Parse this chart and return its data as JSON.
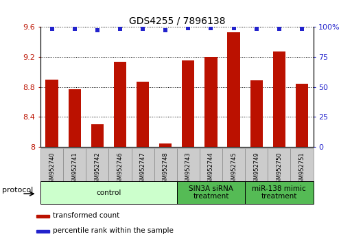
{
  "title": "GDS4255 / 7896138",
  "samples": [
    "GSM952740",
    "GSM952741",
    "GSM952742",
    "GSM952746",
    "GSM952747",
    "GSM952748",
    "GSM952743",
    "GSM952744",
    "GSM952745",
    "GSM952749",
    "GSM952750",
    "GSM952751"
  ],
  "bar_values": [
    8.9,
    8.77,
    8.3,
    9.13,
    8.87,
    8.05,
    9.15,
    9.2,
    9.53,
    8.89,
    9.27,
    8.84
  ],
  "dot_values": [
    98,
    98,
    97,
    98,
    98,
    97,
    99,
    99,
    99,
    98,
    98,
    98
  ],
  "bar_color": "#bb1100",
  "dot_color": "#2222cc",
  "ylim_left": [
    8.0,
    9.6
  ],
  "ylim_right": [
    0,
    100
  ],
  "yticks_left": [
    8.0,
    8.4,
    8.8,
    9.2,
    9.6
  ],
  "yticks_right": [
    0,
    25,
    50,
    75,
    100
  ],
  "groups": [
    {
      "label": "control",
      "start": 0,
      "end": 6,
      "color": "#ccffcc",
      "text_color": "black"
    },
    {
      "label": "SIN3A siRNA\ntreatment",
      "start": 6,
      "end": 9,
      "color": "#55bb55",
      "text_color": "black"
    },
    {
      "label": "miR-138 mimic\ntreatment",
      "start": 9,
      "end": 12,
      "color": "#55bb55",
      "text_color": "black"
    }
  ],
  "protocol_label": "protocol",
  "legend_bar_label": "transformed count",
  "legend_dot_label": "percentile rank within the sample",
  "bar_width": 0.55,
  "background_color": "#ffffff",
  "sample_box_color": "#cccccc",
  "sample_box_edge": "#888888"
}
